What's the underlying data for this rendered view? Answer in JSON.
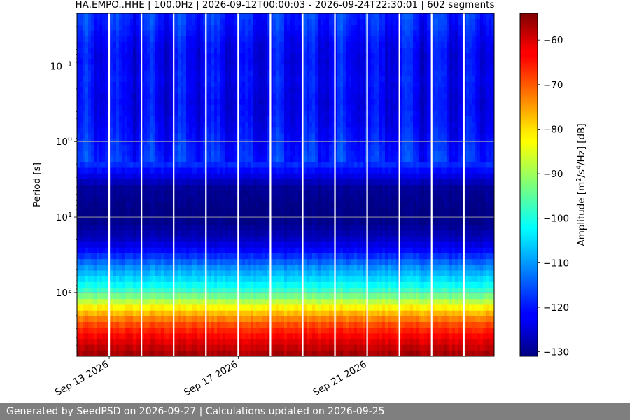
{
  "chart_data": {
    "type": "heatmap",
    "title": "HA.EMPO..HHE | 100.0Hz | 2026-09-12T00:00:03 - 2026-09-24T22:30:01 | 602 segments",
    "xlabel": "",
    "ylabel": "Period [s]",
    "y_scale": "log",
    "y_inverted": true,
    "ylim": [
      0.02,
      700
    ],
    "y_ticks": [
      {
        "value": 0.1,
        "base": "10",
        "exp": "−1"
      },
      {
        "value": 1,
        "base": "10",
        "exp": "0"
      },
      {
        "value": 10,
        "base": "10",
        "exp": "1"
      },
      {
        "value": 100,
        "base": "10",
        "exp": "2"
      }
    ],
    "x_start": "2026-09-12T00:00:03",
    "x_end": "2026-09-24T22:30:01",
    "x_ticks": [
      {
        "date": "2026-09-13",
        "label": "Sep 13 2026"
      },
      {
        "date": "2026-09-17",
        "label": "Sep 17 2026"
      },
      {
        "date": "2026-09-21",
        "label": "Sep 21 2026"
      }
    ],
    "data_gaps": [
      "2026-09-13",
      "2026-09-14",
      "2026-09-15",
      "2026-09-16",
      "2026-09-17",
      "2026-09-18",
      "2026-09-19",
      "2026-09-20",
      "2026-09-21",
      "2026-09-22",
      "2026-09-23",
      "2026-09-24"
    ],
    "grid": true,
    "colormap": "jet",
    "colorbar": {
      "label_main": "Amplitude [m",
      "label_sup1": "2",
      "label_mid": "/s",
      "label_sup2": "4",
      "label_end": "/Hz] [dB]",
      "min": -131,
      "max": -54,
      "ticks": [
        -60,
        -70,
        -80,
        -90,
        -100,
        -110,
        -120,
        -130
      ]
    },
    "period_profile": [
      {
        "period": 0.02,
        "db": -118
      },
      {
        "period": 0.03,
        "db": -119
      },
      {
        "period": 0.05,
        "db": -121
      },
      {
        "period": 0.08,
        "db": -122
      },
      {
        "period": 0.15,
        "db": -121
      },
      {
        "period": 0.3,
        "db": -122
      },
      {
        "period": 0.6,
        "db": -121
      },
      {
        "period": 1.2,
        "db": -119
      },
      {
        "period": 2.0,
        "db": -118
      },
      {
        "period": 2.8,
        "db": -123
      },
      {
        "period": 4,
        "db": -129
      },
      {
        "period": 10,
        "db": -131
      },
      {
        "period": 18,
        "db": -127
      },
      {
        "period": 30,
        "db": -120
      },
      {
        "period": 45,
        "db": -111
      },
      {
        "period": 70,
        "db": -104
      },
      {
        "period": 100,
        "db": -97
      },
      {
        "period": 150,
        "db": -84
      },
      {
        "period": 200,
        "db": -76
      },
      {
        "period": 280,
        "db": -68
      },
      {
        "period": 400,
        "db": -63
      },
      {
        "period": 700,
        "db": -56
      }
    ]
  },
  "footer": {
    "text": "Generated by SeedPSD on 2026-09-27 | Calculations updated on 2026-09-25"
  }
}
